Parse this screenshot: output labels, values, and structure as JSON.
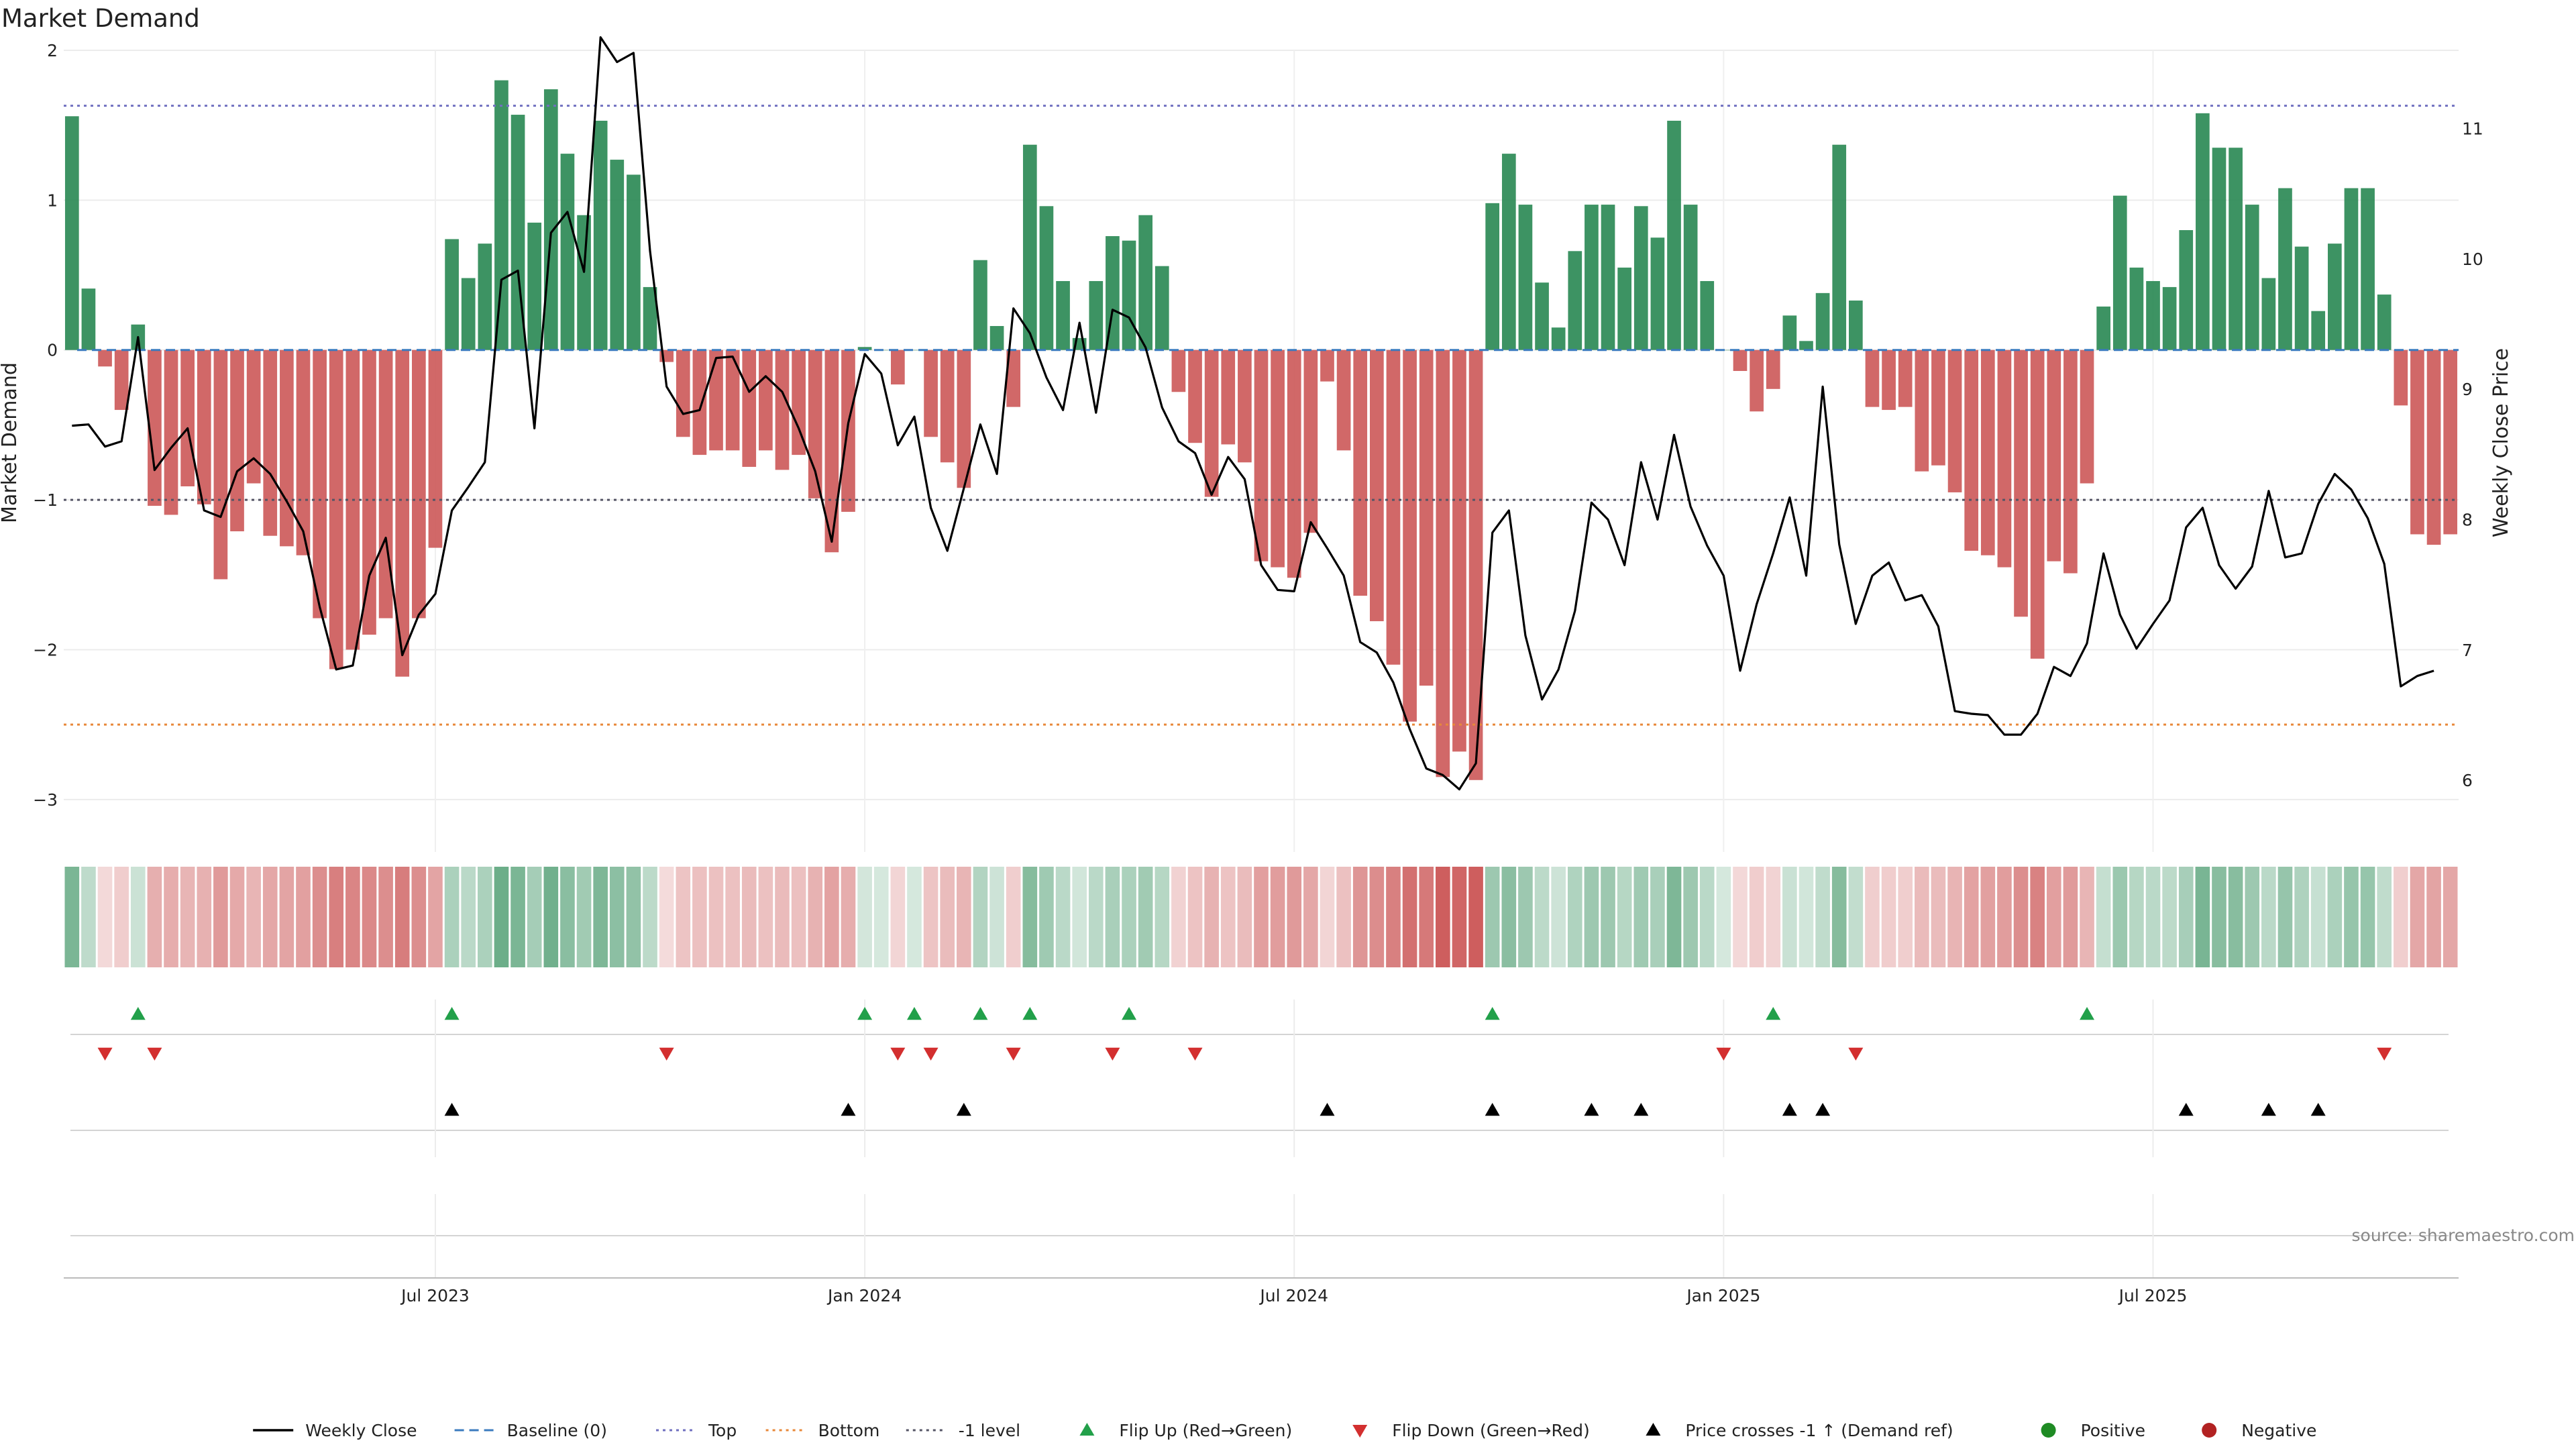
{
  "chart_data": {
    "type": "bar",
    "title": "Market Demand",
    "ylabel_left": "Market Demand",
    "ylabel_right": "Weekly Close Price",
    "ylim_left": [
      -3.35,
      2.0
    ],
    "ylim_right": [
      5.45,
      11.6
    ],
    "yticks_left": [
      {
        "v": 2,
        "label": "2"
      },
      {
        "v": 1,
        "label": "1"
      },
      {
        "v": 0,
        "label": "0"
      },
      {
        "v": -1,
        "label": "−1"
      },
      {
        "v": -2,
        "label": "−2"
      },
      {
        "v": -3,
        "label": "−3"
      }
    ],
    "yticks_right": [
      {
        "v": 11,
        "label": "11"
      },
      {
        "v": 10,
        "label": "10"
      },
      {
        "v": 9,
        "label": "9"
      },
      {
        "v": 8,
        "label": "8"
      },
      {
        "v": 7,
        "label": "7"
      },
      {
        "v": 6,
        "label": "6"
      }
    ],
    "xticks": [
      {
        "i": 22,
        "label": "Jul 2023"
      },
      {
        "i": 48,
        "label": "Jan 2024"
      },
      {
        "i": 74,
        "label": "Jul 2024"
      },
      {
        "i": 100,
        "label": "Jan 2025"
      },
      {
        "i": 126,
        "label": "Jul 2025"
      }
    ],
    "reference_lines": {
      "baseline": 0,
      "top": 1.63,
      "bottom": -2.5,
      "minus_one": -1
    },
    "demand": [
      1.56,
      0.41,
      -0.11,
      -0.4,
      0.17,
      -1.04,
      -1.1,
      -0.91,
      -1.03,
      -1.53,
      -1.21,
      -0.89,
      -1.24,
      -1.31,
      -1.37,
      -1.79,
      -2.13,
      -2.0,
      -1.9,
      -1.79,
      -2.18,
      -1.79,
      -1.32,
      0.74,
      0.48,
      0.71,
      1.8,
      1.57,
      0.85,
      1.74,
      1.31,
      0.9,
      1.53,
      1.27,
      1.17,
      0.42,
      -0.08,
      -0.58,
      -0.7,
      -0.67,
      -0.67,
      -0.78,
      -0.67,
      -0.8,
      -0.7,
      -0.99,
      -1.35,
      -1.08,
      0.02,
      0.0,
      -0.23,
      0.0,
      -0.58,
      -0.75,
      -0.92,
      0.6,
      0.16,
      -0.38,
      1.37,
      0.96,
      0.46,
      0.08,
      0.46,
      0.76,
      0.73,
      0.9,
      0.56,
      -0.28,
      -0.62,
      -0.98,
      -0.63,
      -0.75,
      -1.41,
      -1.45,
      -1.52,
      -1.22,
      -0.21,
      -0.67,
      -1.64,
      -1.81,
      -2.1,
      -2.48,
      -2.24,
      -2.85,
      -2.68,
      -2.87,
      0.98,
      1.31,
      0.97,
      0.45,
      0.15,
      0.66,
      0.97,
      0.97,
      0.55,
      0.96,
      0.75,
      1.53,
      0.97,
      0.46,
      0.0,
      -0.14,
      -0.41,
      -0.26,
      0.23,
      0.06,
      0.38,
      1.37,
      0.33,
      -0.38,
      -0.4,
      -0.38,
      -0.81,
      -0.77,
      -0.95,
      -1.34,
      -1.37,
      -1.45,
      -1.78,
      -2.06,
      -1.41,
      -1.49,
      -0.89,
      0.29,
      1.03,
      0.55,
      0.46,
      0.42,
      0.8,
      1.58,
      1.35,
      1.35,
      0.97,
      0.48,
      1.08,
      0.69,
      0.26,
      0.71,
      1.08,
      1.08,
      0.37,
      -0.37,
      -1.23,
      -1.3,
      -1.23
    ],
    "weekly_close": [
      8.72,
      8.73,
      8.56,
      8.6,
      9.4,
      8.38,
      8.55,
      8.7,
      8.07,
      8.02,
      8.37,
      8.47,
      8.35,
      8.14,
      7.91,
      7.33,
      6.85,
      6.88,
      7.57,
      7.86,
      6.96,
      7.27,
      7.43,
      8.07,
      8.25,
      8.44,
      9.84,
      9.91,
      8.7,
      10.2,
      10.36,
      9.9,
      11.7,
      11.51,
      11.58,
      10.06,
      9.02,
      8.81,
      8.84,
      9.24,
      9.25,
      8.98,
      9.1,
      8.98,
      8.7,
      8.37,
      7.83,
      8.74,
      9.27,
      9.12,
      8.57,
      8.79,
      8.09,
      7.76,
      8.24,
      8.73,
      8.35,
      9.62,
      9.43,
      9.09,
      8.84,
      9.51,
      8.82,
      9.61,
      9.55,
      9.32,
      8.86,
      8.6,
      8.51,
      8.19,
      8.48,
      8.31,
      7.65,
      7.46,
      7.45,
      7.98,
      7.78,
      7.57,
      7.06,
      6.98,
      6.75,
      6.39,
      6.09,
      6.04,
      5.93,
      6.13,
      7.9,
      8.07,
      7.11,
      6.62,
      6.85,
      7.3,
      8.13,
      8.0,
      7.65,
      8.44,
      8.0,
      8.65,
      8.1,
      7.8,
      7.57,
      6.84,
      7.35,
      7.74,
      8.17,
      7.57,
      9.02,
      7.81,
      7.2,
      7.57,
      7.67,
      7.38,
      7.42,
      7.18,
      6.53,
      6.51,
      6.5,
      6.35,
      6.35,
      6.51,
      6.87,
      6.8,
      7.05,
      7.74,
      7.27,
      7.01,
      7.2,
      7.38,
      7.94,
      8.09,
      7.65,
      7.47,
      7.64,
      8.22,
      7.71,
      7.74,
      8.12,
      8.35,
      8.23,
      8.01,
      7.66,
      6.72,
      6.8,
      6.84
    ],
    "flip_up_weeks": [
      4,
      23,
      48,
      51,
      55,
      58,
      64,
      86,
      103,
      122
    ],
    "flip_down_weeks": [
      2,
      5,
      36,
      50,
      52,
      57,
      63,
      68,
      100,
      108,
      140
    ],
    "price_cross_weeks": [
      23,
      47,
      54,
      76,
      86,
      92,
      95,
      104,
      106,
      128,
      133,
      136
    ],
    "legend": [
      {
        "key": "line",
        "label": "Weekly Close"
      },
      {
        "key": "baseline",
        "label": "Baseline (0)"
      },
      {
        "key": "top",
        "label": "Top"
      },
      {
        "key": "bottom",
        "label": "Bottom"
      },
      {
        "key": "minus1",
        "label": "-1 level"
      },
      {
        "key": "flipup",
        "label": "Flip Up (Red→Green)"
      },
      {
        "key": "flipdown",
        "label": "Flip Down (Green→Red)"
      },
      {
        "key": "cross",
        "label": "Price crosses -1 ↑ (Demand ref)"
      },
      {
        "key": "pos",
        "label": "Positive"
      },
      {
        "key": "neg",
        "label": "Negative"
      }
    ],
    "source": "source: sharemaestro.com"
  },
  "colors": {
    "positive": "#2e8b57",
    "negative": "#cd5c5c",
    "line": "#000000",
    "baseline": "#3b7bbf",
    "top": "#7070c0",
    "bottom": "#e8883a",
    "minus_one": "#555566",
    "flip_up": "#22a04a",
    "flip_down": "#d32f2f",
    "cross": "#000000",
    "positive_dot": "#1f8b24",
    "negative_dot": "#b22222"
  }
}
